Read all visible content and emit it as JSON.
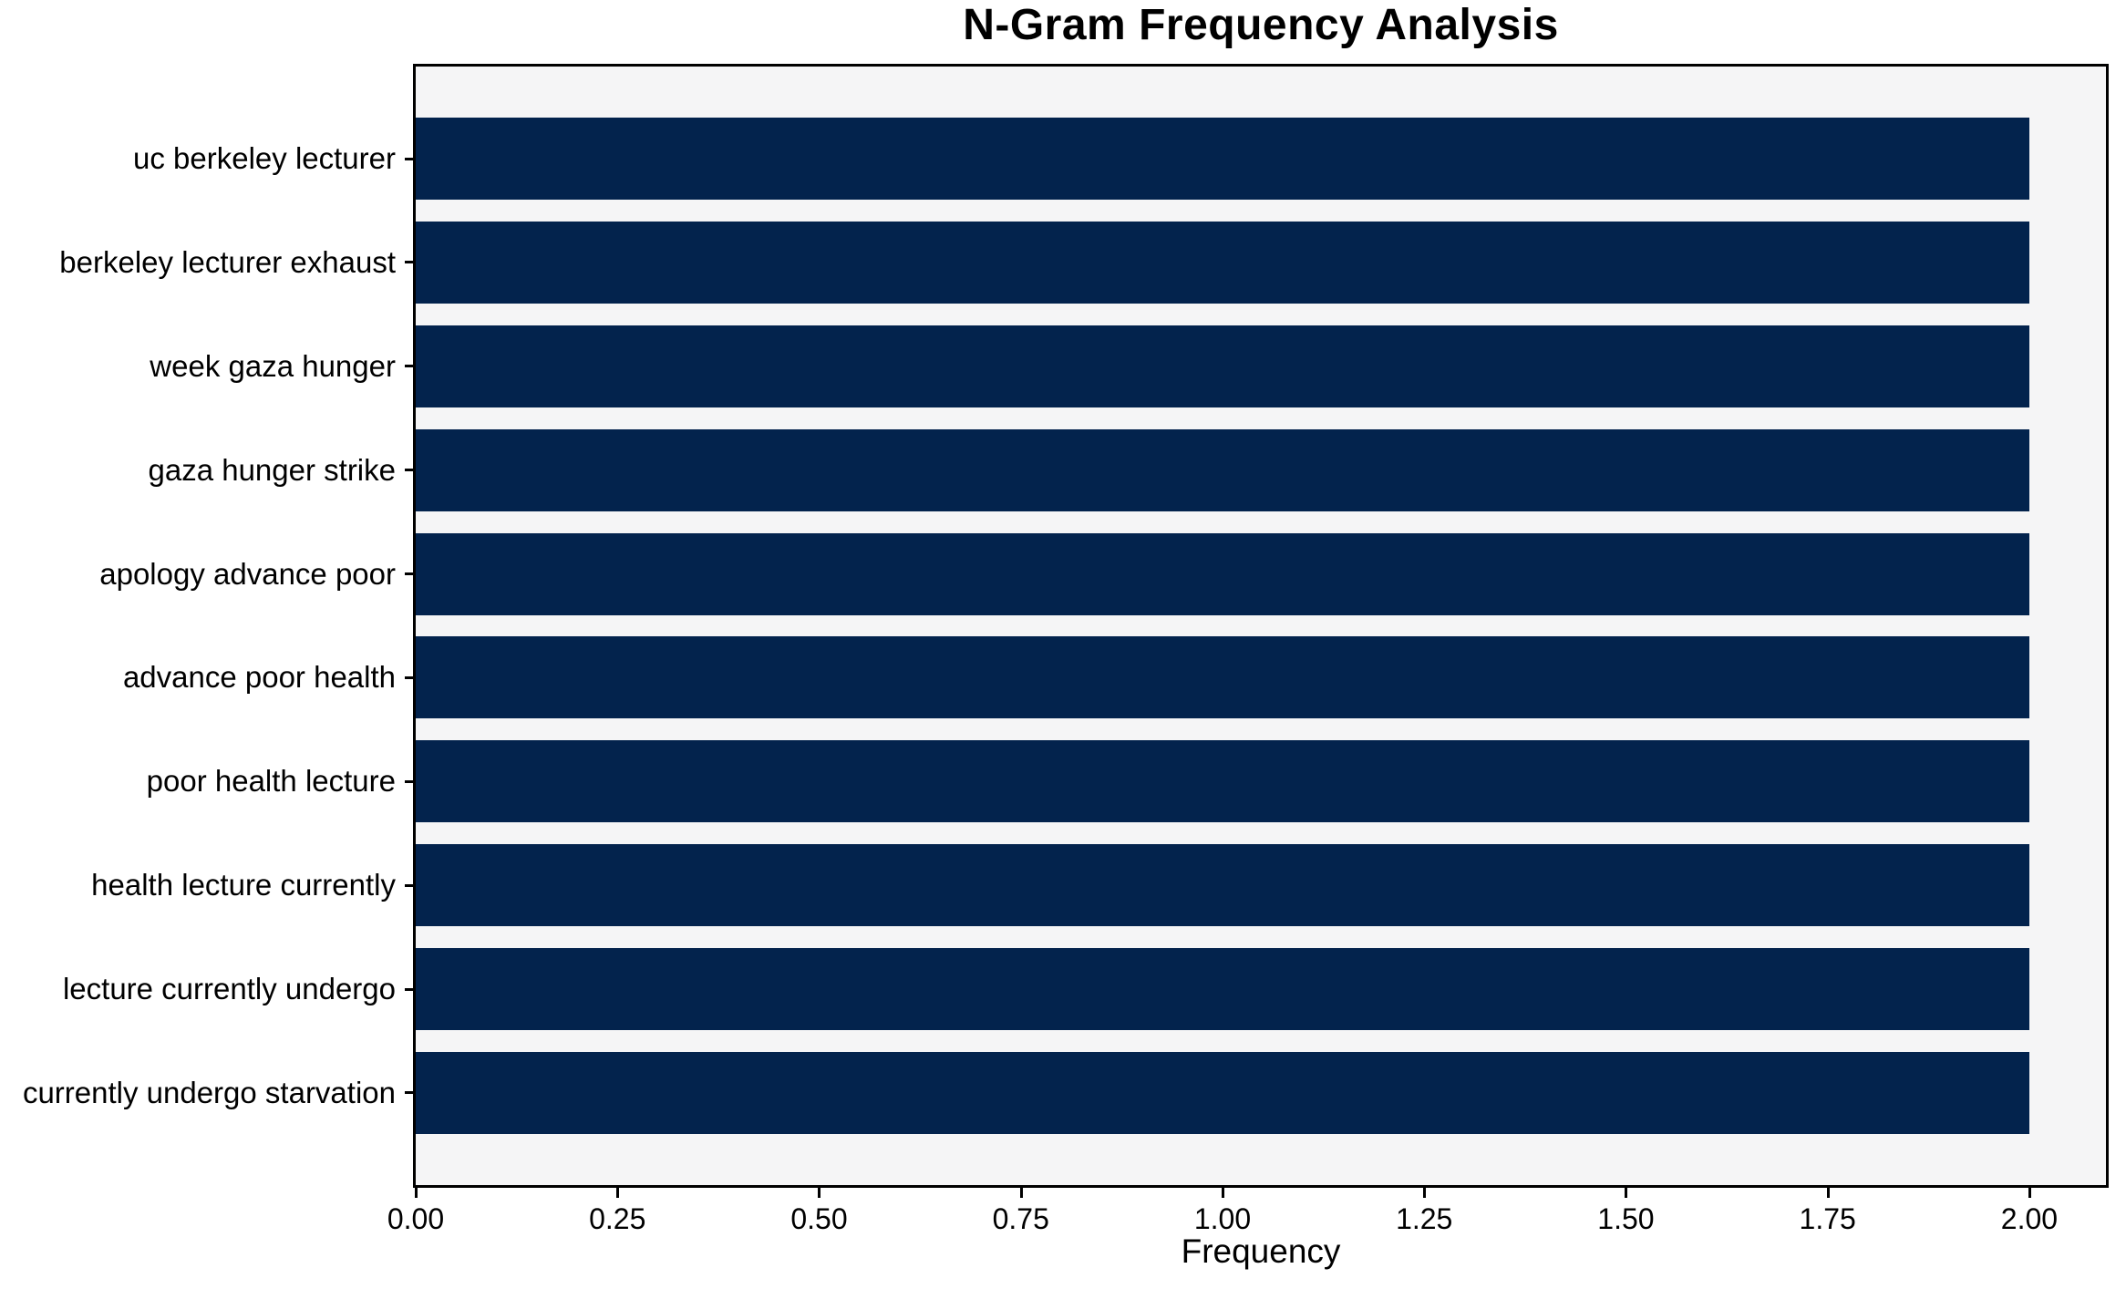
{
  "chart_data": {
    "type": "bar",
    "orientation": "horizontal",
    "title": "N-Gram Frequency Analysis",
    "xlabel": "Frequency",
    "ylabel": "",
    "categories": [
      "uc berkeley lecturer",
      "berkeley lecturer exhaust",
      "week gaza hunger",
      "gaza hunger strike",
      "apology advance poor",
      "advance poor health",
      "poor health lecture",
      "health lecture currently",
      "lecture currently undergo",
      "currently undergo starvation"
    ],
    "values": [
      2,
      2,
      2,
      2,
      2,
      2,
      2,
      2,
      2,
      2
    ],
    "xlim": [
      0,
      2.095
    ],
    "xtick_values": [
      0,
      0.25,
      0.5,
      0.75,
      1.0,
      1.25,
      1.5,
      1.75,
      2.0
    ],
    "xtick_labels": [
      "0.00",
      "0.25",
      "0.50",
      "0.75",
      "1.00",
      "1.25",
      "1.50",
      "1.75",
      "2.00"
    ],
    "grid": false,
    "legend_position": "none",
    "colors": {
      "bar": "#03234d",
      "plot_background": "#f5f5f6",
      "figure_background": "#ffffff",
      "spine": "#000000",
      "text": "#000000"
    }
  }
}
